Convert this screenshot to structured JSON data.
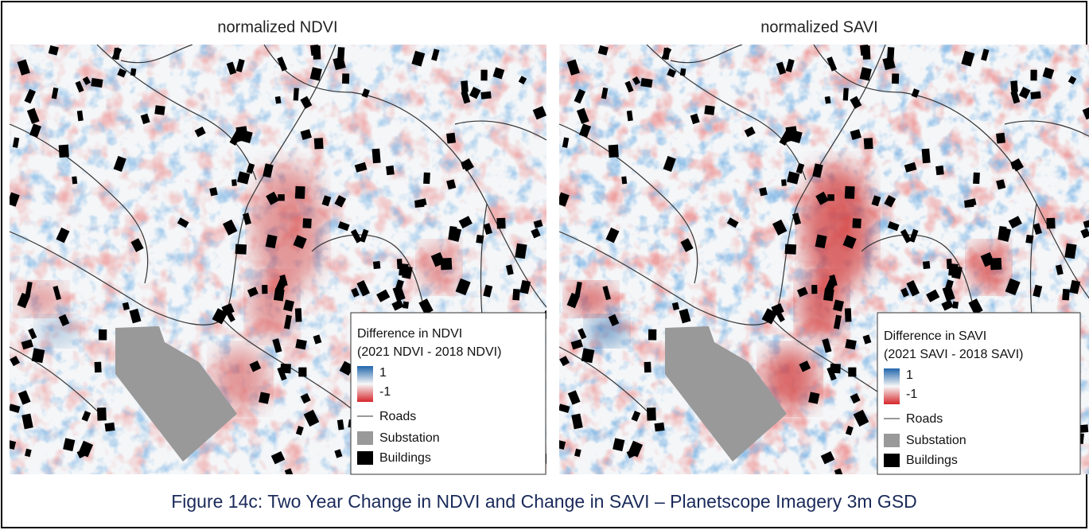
{
  "panels": [
    {
      "title": "normalized NDVI",
      "legend": {
        "title_line1": "Difference in NDVI",
        "title_line2": "(2021 NDVI - 2018 NDVI)",
        "max": 1,
        "min": -1,
        "roads": "Roads",
        "substation": "Substation",
        "buildings": "Buildings"
      }
    },
    {
      "title": "normalized SAVI",
      "legend": {
        "title_line1": "Difference in SAVI",
        "title_line2": "(2021 SAVI - 2018 SAVI)",
        "max": 1,
        "min": -1,
        "roads": "Roads",
        "substation": "Substation",
        "buildings": "Buildings"
      }
    }
  ],
  "caption": "Figure 14c: Two Year Change in NDVI and Change in SAVI – Planetscope Imagery 3m GSD"
}
